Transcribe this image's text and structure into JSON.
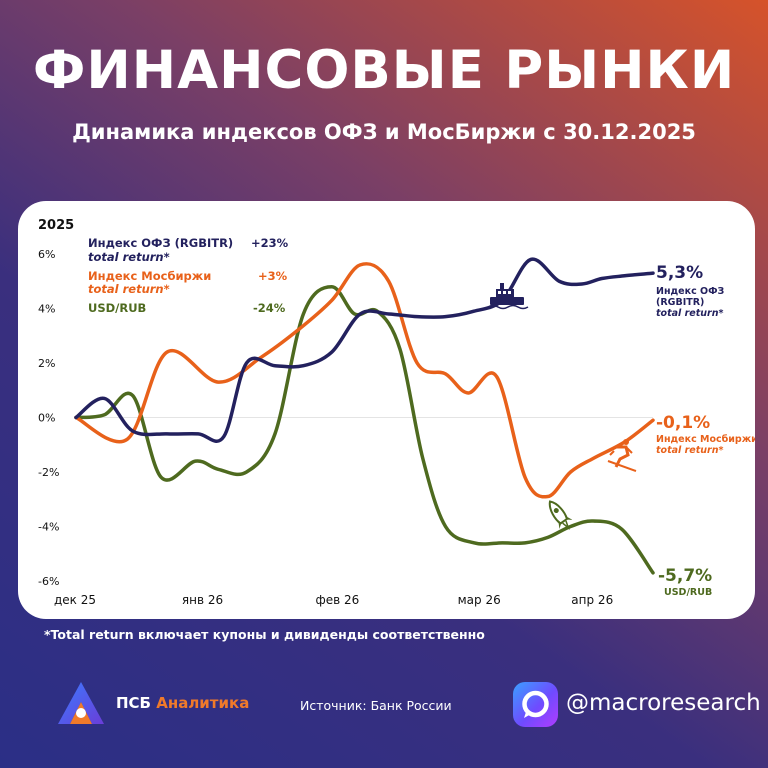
{
  "header": {
    "title": "ФИНАНСОВЫЕ РЫНКИ",
    "subtitle": "Динамика индексов ОФЗ и МосБиржи с 30.12.2025"
  },
  "legend": {
    "year": "2025",
    "items": [
      {
        "name": "Индекс ОФЗ (RGBITR)",
        "sub": "total return*",
        "value": "+23%",
        "color": "#23215e"
      },
      {
        "name": "Индекс Мосбиржи",
        "sub": "total return*",
        "value": "+3%",
        "color": "#e8611a"
      },
      {
        "name": "USD/RUB",
        "sub": "",
        "value": "-24%",
        "color": "#4e6a1f"
      }
    ]
  },
  "end_labels": {
    "ofz": {
      "value": "5,3%",
      "line1": "Индекс ОФЗ",
      "line2": "(RGBITR)",
      "line3": "total return*"
    },
    "moex": {
      "value": "-0,1%",
      "line1": "Индекс Мосбиржи",
      "line2": "total return*"
    },
    "usd": {
      "value": "-5,7%",
      "line1": "USD/RUB"
    }
  },
  "footnote": "*Total return включает купоны и дивиденды соответственно",
  "footer": {
    "brand_main": "ПСБ ",
    "brand_accent": "Аналитика",
    "source": "Источник: Банк России",
    "handle": "@macroresearch"
  },
  "icons": [
    "ship-icon",
    "skier-icon",
    "rocket-icon",
    "psb-logo-icon",
    "max-messenger-icon"
  ],
  "chart_data": {
    "type": "line",
    "x_tick_labels": [
      "дек 25",
      "янв 26",
      "фев 26",
      "мар 26",
      "апр 26"
    ],
    "x_tick_positions": [
      0,
      4.5,
      9.2,
      14.2,
      18.2
    ],
    "ylim": [
      -6,
      6
    ],
    "yticks": [
      6,
      4,
      2,
      0,
      -2,
      -4,
      -6
    ],
    "ytick_labels": [
      "6%",
      "4%",
      "2%",
      "0%",
      "-2%",
      "-4%",
      "-6%"
    ],
    "series": [
      {
        "name": "Индекс ОФЗ (RGBITR) total return*",
        "color": "#23215e",
        "x": [
          0,
          1,
          2,
          3.2,
          4.3,
          5.2,
          6.0,
          7.0,
          8.0,
          9.0,
          10.0,
          11.0,
          12.0,
          13.0,
          14.0,
          15.0,
          16.0,
          17.0,
          17.8,
          18.5,
          19.3,
          20.3
        ],
        "y": [
          0,
          0.7,
          -0.5,
          -0.6,
          -0.6,
          -0.7,
          2.0,
          1.9,
          1.9,
          2.4,
          3.8,
          3.8,
          3.7,
          3.7,
          3.9,
          4.3,
          5.8,
          5.0,
          4.9,
          5.1,
          5.2,
          5.3
        ]
      },
      {
        "name": "Индекс Мосбиржи total return*",
        "color": "#e8611a",
        "x": [
          0,
          1.8,
          3.2,
          5.0,
          6.5,
          7.8,
          9.0,
          10.0,
          11.0,
          12.0,
          13.0,
          13.8,
          14.8,
          15.8,
          16.6,
          17.4,
          18.2,
          19.3,
          20.3
        ],
        "y": [
          0,
          -0.8,
          2.4,
          1.3,
          2.2,
          3.2,
          4.3,
          5.6,
          5.0,
          2.0,
          1.6,
          0.9,
          1.5,
          -2.2,
          -2.9,
          -2.0,
          -1.5,
          -0.9,
          -0.1
        ]
      },
      {
        "name": "USD/RUB",
        "color": "#4e6a1f",
        "x": [
          0,
          1.0,
          2.0,
          3.0,
          4.2,
          5.0,
          6.0,
          7.0,
          8.0,
          9.0,
          9.8,
          10.6,
          11.4,
          12.2,
          13.0,
          14.0,
          15.0,
          15.8,
          16.6,
          17.4,
          18.2,
          19.2,
          20.3
        ],
        "y": [
          0,
          0.1,
          0.8,
          -2.2,
          -1.6,
          -1.9,
          -2.0,
          -0.6,
          3.8,
          4.8,
          3.8,
          3.9,
          2.5,
          -1.5,
          -4.0,
          -4.6,
          -4.6,
          -4.6,
          -4.4,
          -4.0,
          -3.8,
          -4.1,
          -5.7
        ]
      }
    ]
  }
}
